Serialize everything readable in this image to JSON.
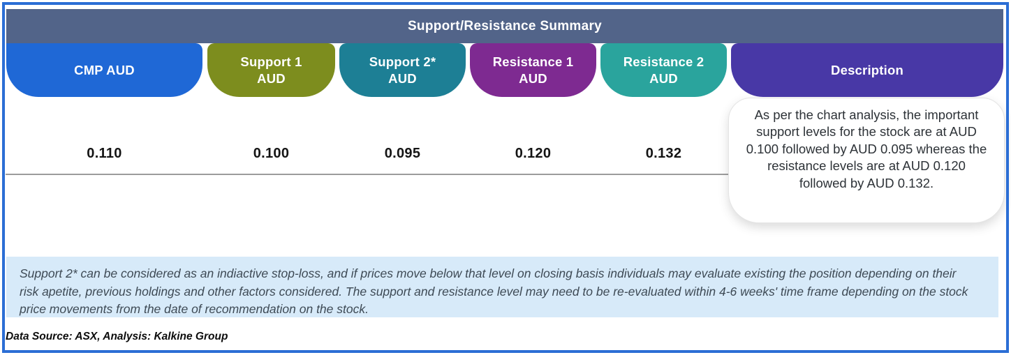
{
  "chart_data": {
    "type": "table",
    "title": "Support/Resistance Summary",
    "title_bar_color": "#526489",
    "columns": [
      {
        "header": "CMP AUD",
        "value": "0.110",
        "color": "#1f68d6"
      },
      {
        "header": "Support 1\nAUD",
        "value": "0.100",
        "color": "#7d8d1e"
      },
      {
        "header": "Support 2*\nAUD",
        "value": "0.095",
        "color": "#1d7f95"
      },
      {
        "header": "Resistance 1\nAUD",
        "value": "0.120",
        "color": "#7e2a91"
      },
      {
        "header": "Resistance 2\nAUD",
        "value": "0.132",
        "color": "#2aa49d"
      },
      {
        "header": "Description",
        "value": "As per the chart analysis, the important support levels for the stock are at AUD 0.100 followed by AUD 0.095 whereas the resistance levels are at AUD 0.120 followed by AUD 0.132.",
        "color": "#4838a6"
      }
    ],
    "rows": [
      [
        "0.110",
        "0.100",
        "0.095",
        "0.120",
        "0.132"
      ]
    ]
  },
  "note": {
    "text": "Support 2* can be considered as an indiactive stop-loss, and if prices move below that level on closing basis individuals may evaluate existing the position depending on their risk apetite, previous holdings and other factors considered. The support and resistance level may need to be re-evaluated within 4-6 weeks' time frame depending on the stock price movements from  the date of recommendation on the stock.",
    "background": "#d7eaf9"
  },
  "footer": {
    "data_source": "Data Source: ASX, Analysis: Kalkine Group"
  },
  "frame": {
    "border_color": "#2b6ed5"
  }
}
